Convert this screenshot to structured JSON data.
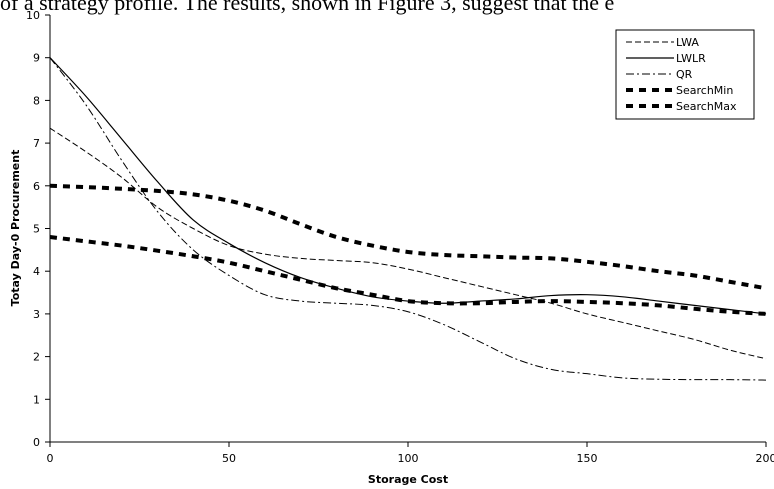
{
  "page_text": {
    "header_fragment": "of a strategy profile. The results, shown in Figure 3, suggest that the e"
  },
  "chart_data": {
    "type": "line",
    "xlabel": "Storage Cost",
    "ylabel": "Totay Day-0 Procurement",
    "xlim": [
      0,
      200
    ],
    "ylim": [
      0,
      10
    ],
    "xticks": [
      0,
      50,
      100,
      150,
      200
    ],
    "yticks": [
      0,
      1,
      2,
      3,
      4,
      5,
      6,
      7,
      8,
      9,
      10
    ],
    "grid": false,
    "legend_position": "top-right",
    "series": [
      {
        "name": "LWA",
        "style": "dashed",
        "x": [
          0,
          10,
          20,
          30,
          40,
          50,
          60,
          70,
          80,
          90,
          100,
          110,
          120,
          130,
          140,
          150,
          160,
          170,
          180,
          190,
          200
        ],
        "values": [
          7.35,
          6.8,
          6.2,
          5.5,
          5.0,
          4.6,
          4.4,
          4.3,
          4.25,
          4.2,
          4.05,
          3.85,
          3.65,
          3.45,
          3.25,
          3.0,
          2.8,
          2.6,
          2.4,
          2.15,
          1.95
        ]
      },
      {
        "name": "LWLR",
        "style": "solid",
        "x": [
          0,
          10,
          20,
          30,
          40,
          50,
          60,
          70,
          80,
          90,
          100,
          110,
          120,
          130,
          140,
          150,
          160,
          170,
          180,
          190,
          200
        ],
        "values": [
          9.0,
          8.1,
          7.1,
          6.1,
          5.2,
          4.65,
          4.2,
          3.85,
          3.6,
          3.4,
          3.3,
          3.25,
          3.3,
          3.35,
          3.43,
          3.45,
          3.4,
          3.3,
          3.2,
          3.1,
          3.0
        ]
      },
      {
        "name": "QR",
        "style": "dashdot",
        "x": [
          0,
          10,
          20,
          30,
          40,
          50,
          60,
          70,
          80,
          90,
          100,
          110,
          120,
          130,
          140,
          150,
          160,
          170,
          180,
          190,
          200
        ],
        "values": [
          9.0,
          7.9,
          6.6,
          5.4,
          4.5,
          3.9,
          3.45,
          3.3,
          3.25,
          3.2,
          3.05,
          2.75,
          2.35,
          1.95,
          1.7,
          1.6,
          1.5,
          1.47,
          1.46,
          1.46,
          1.45
        ]
      },
      {
        "name": "SearchMin",
        "style": "heavy-dotted",
        "x": [
          0,
          10,
          20,
          30,
          40,
          50,
          60,
          70,
          80,
          90,
          100,
          110,
          120,
          130,
          140,
          150,
          160,
          170,
          180,
          190,
          200
        ],
        "values": [
          4.8,
          4.7,
          4.6,
          4.48,
          4.35,
          4.2,
          4.0,
          3.8,
          3.6,
          3.45,
          3.3,
          3.25,
          3.25,
          3.28,
          3.3,
          3.28,
          3.25,
          3.2,
          3.12,
          3.05,
          3.0
        ]
      },
      {
        "name": "SearchMax",
        "style": "heavy-dotted",
        "x": [
          0,
          10,
          20,
          30,
          40,
          50,
          60,
          70,
          80,
          90,
          100,
          110,
          120,
          130,
          140,
          150,
          160,
          170,
          180,
          190,
          200
        ],
        "values": [
          6.0,
          5.97,
          5.93,
          5.88,
          5.8,
          5.65,
          5.42,
          5.1,
          4.8,
          4.6,
          4.45,
          4.38,
          4.35,
          4.32,
          4.3,
          4.22,
          4.12,
          4.0,
          3.9,
          3.75,
          3.6
        ]
      }
    ]
  }
}
